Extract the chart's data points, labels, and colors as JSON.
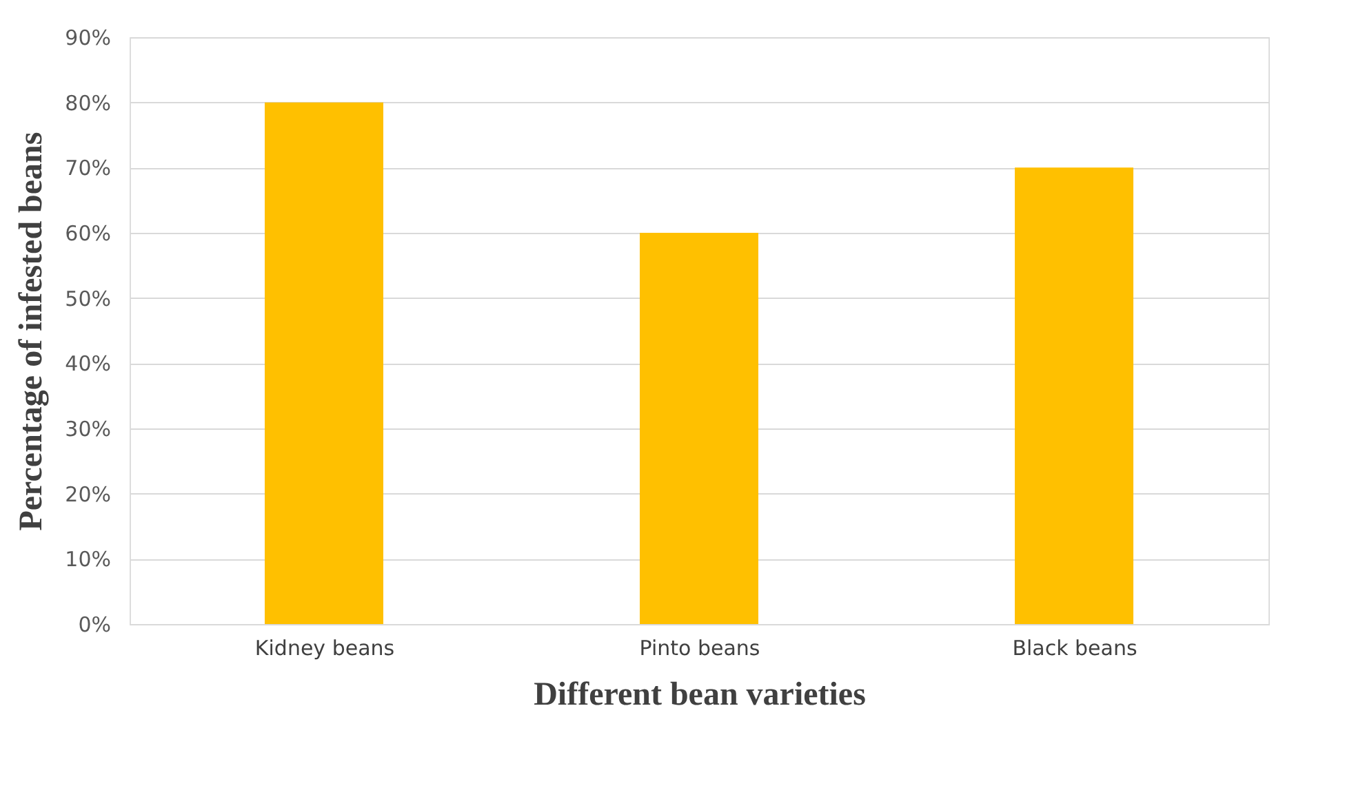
{
  "chart_data": {
    "type": "bar",
    "xlabel": "Different bean varieties",
    "ylabel": "Percentage of infested beans",
    "categories": [
      "Kidney beans",
      "Pinto beans",
      "Black beans"
    ],
    "values": [
      80,
      60,
      70
    ],
    "color": "#ffc000",
    "ylim": [
      0,
      90
    ],
    "yticks": [
      {
        "value": 0,
        "label": "0%"
      },
      {
        "value": 10,
        "label": "10%"
      },
      {
        "value": 20,
        "label": "20%"
      },
      {
        "value": 30,
        "label": "30%"
      },
      {
        "value": 40,
        "label": "40%"
      },
      {
        "value": 50,
        "label": "50%"
      },
      {
        "value": 60,
        "label": "60%"
      },
      {
        "value": 70,
        "label": "70%"
      },
      {
        "value": 80,
        "label": "80%"
      },
      {
        "value": 90,
        "label": "90%"
      }
    ],
    "grid": "y"
  }
}
